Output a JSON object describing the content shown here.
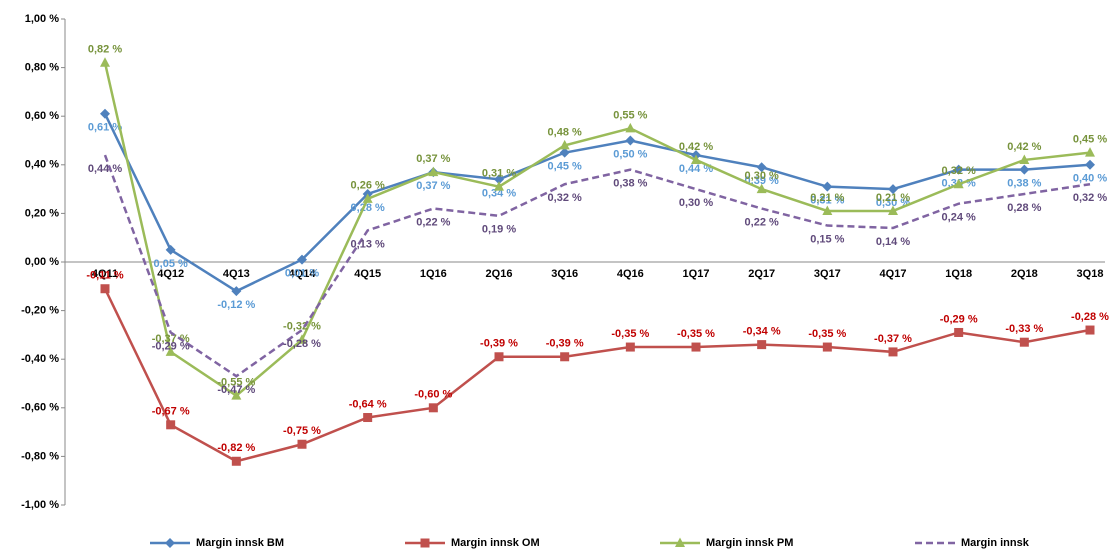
{
  "chart_data": {
    "type": "line",
    "categories": [
      "4Q11",
      "4Q12",
      "4Q13",
      "4Q14",
      "4Q15",
      "1Q16",
      "2Q16",
      "3Q16",
      "4Q16",
      "1Q17",
      "2Q17",
      "3Q17",
      "4Q17",
      "1Q18",
      "2Q18",
      "3Q18"
    ],
    "ylim": [
      -1,
      1
    ],
    "yticks": [
      {
        "value": -1,
        "label": "-1,00 %"
      },
      {
        "value": -0.8,
        "label": "-0,80 %"
      },
      {
        "value": -0.6,
        "label": "-0,60 %"
      },
      {
        "value": -0.4,
        "label": "-0,40 %"
      },
      {
        "value": -0.2,
        "label": "-0,20 %"
      },
      {
        "value": 0,
        "label": "0,00 %"
      },
      {
        "value": 0.2,
        "label": "0,20 %"
      },
      {
        "value": 0.4,
        "label": "0,40 %"
      },
      {
        "value": 0.6,
        "label": "0,60 %"
      },
      {
        "value": 0.8,
        "label": "0,80 %"
      },
      {
        "value": 1,
        "label": "1,00 %"
      }
    ],
    "grid": false,
    "legend": "bottom",
    "series": [
      {
        "name": "Margin innsk BM",
        "color": "#4f81bd",
        "label_color": "#5b9bd5",
        "marker": "diamond",
        "dash": false,
        "values": [
          0.61,
          0.05,
          -0.12,
          0.01,
          0.28,
          0.37,
          0.34,
          0.45,
          0.5,
          0.44,
          0.39,
          0.31,
          0.3,
          0.38,
          0.38,
          0.4
        ],
        "value_labels": [
          "0,61 %",
          "0,05 %",
          "-0,12 %",
          "0,01 %",
          "0,28 %",
          "0,37 %",
          "0,34 %",
          "0,45 %",
          "0,50 %",
          "0,44 %",
          "0,39 %",
          "0,31 %",
          "0,30 %",
          "0,38 %",
          "0,38 %",
          "0,40 %"
        ]
      },
      {
        "name": "Margin innsk OM",
        "color": "#c0504d",
        "label_color": "#c00000",
        "marker": "square",
        "dash": false,
        "values": [
          -0.11,
          -0.67,
          -0.82,
          -0.75,
          -0.64,
          -0.6,
          -0.39,
          -0.39,
          -0.35,
          -0.35,
          -0.34,
          -0.35,
          -0.37,
          -0.29,
          -0.33,
          -0.28
        ],
        "value_labels": [
          "-0,11 %",
          "-0,67 %",
          "-0,82 %",
          "-0,75 %",
          "-0,64 %",
          "-0,60 %",
          "-0,39 %",
          "-0,39 %",
          "-0,35 %",
          "-0,35 %",
          "-0,34 %",
          "-0,35 %",
          "-0,37 %",
          "-0,29 %",
          "-0,33 %",
          "-0,28 %"
        ]
      },
      {
        "name": "Margin innsk PM",
        "color": "#9bbb59",
        "label_color": "#77933c",
        "marker": "triangle",
        "dash": false,
        "values": [
          0.82,
          -0.37,
          -0.55,
          -0.32,
          0.26,
          0.37,
          0.31,
          0.48,
          0.55,
          0.42,
          0.3,
          0.21,
          0.21,
          0.32,
          0.42,
          0.45
        ],
        "value_labels": [
          "0,82 %",
          "-0,37 %",
          "-0,55 %",
          "-0,32 %",
          "0,26 %",
          "0,37 %",
          "0,31 %",
          "0,48 %",
          "0,55 %",
          "0,42 %",
          "0,30 %",
          "0,21 %",
          "0,21 %",
          "0,32 %",
          "0,42 %",
          "0,45 %"
        ]
      },
      {
        "name": "Margin innsk",
        "color": "#8064a2",
        "label_color": "#604a7b",
        "marker": "none",
        "dash": true,
        "values": [
          0.44,
          -0.29,
          -0.47,
          -0.28,
          0.13,
          0.22,
          0.19,
          0.32,
          0.38,
          0.3,
          0.22,
          0.15,
          0.14,
          0.24,
          0.28,
          0.32
        ],
        "value_labels": [
          "0,44 %",
          "-0,29 %",
          "-0,47 %",
          "-0,28 %",
          "0,13 %",
          "0,22 %",
          "0,19 %",
          "0,32 %",
          "0,38 %",
          "0,30 %",
          "0,22 %",
          "0,15 %",
          "0,14 %",
          "0,24 %",
          "0,28 %",
          "0,32 %"
        ]
      }
    ]
  }
}
